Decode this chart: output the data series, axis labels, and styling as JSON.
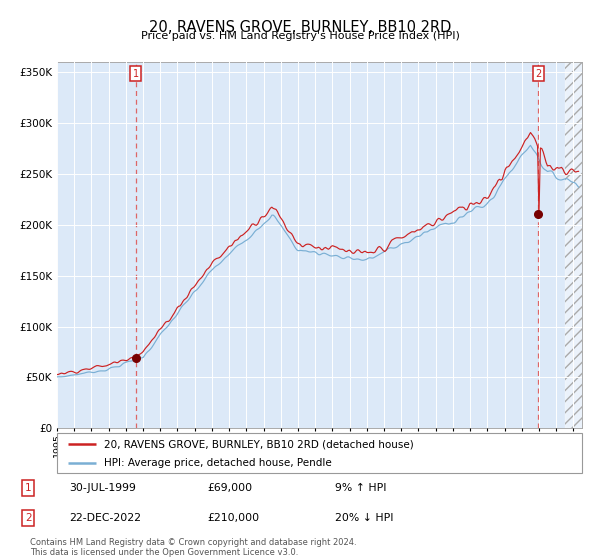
{
  "title": "20, RAVENS GROVE, BURNLEY, BB10 2RD",
  "subtitle": "Price paid vs. HM Land Registry's House Price Index (HPI)",
  "legend_line1": "20, RAVENS GROVE, BURNLEY, BB10 2RD (detached house)",
  "legend_line2": "HPI: Average price, detached house, Pendle",
  "annotation1_date": "30-JUL-1999",
  "annotation1_price": "£69,000",
  "annotation1_hpi": "9% ↑ HPI",
  "annotation2_date": "22-DEC-2022",
  "annotation2_price": "£210,000",
  "annotation2_hpi": "20% ↓ HPI",
  "footnote": "Contains HM Land Registry data © Crown copyright and database right 2024.\nThis data is licensed under the Open Government Licence v3.0.",
  "ylim": [
    0,
    360000
  ],
  "xlim_start": 1995.0,
  "xlim_end": 2025.5,
  "sale1_year": 1999.57,
  "sale1_price": 69000,
  "sale2_year": 2022.97,
  "sale2_price": 210000,
  "plot_bg": "#dce9f8",
  "red_line_color": "#cc2222",
  "blue_line_color": "#7aafd4",
  "annotation_box_color": "#cc2222",
  "dashed_line_color": "#dd6666",
  "title_fontsize": 10,
  "subtitle_fontsize": 8
}
